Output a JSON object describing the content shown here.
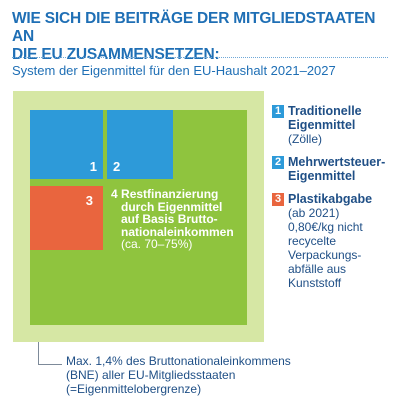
{
  "title": {
    "line1": "WIE SICH DIE BEITRÄGE DER MITGLIEDSTAATEN AN",
    "line2": "DIE EU ZUSAMMENSETZEN:"
  },
  "subtitle": "System der Eigenmittel für den EU-Haushalt  2021–2027",
  "diagram": {
    "box1_number": "1",
    "box2_number": "2",
    "box3_number": "3",
    "rest": {
      "number": "4",
      "line1": "Restfinanzierung",
      "line2": "durch Eigenmittel",
      "line3": "auf Basis Brutto-",
      "line4": "nationaleinkommen",
      "share": "(ca. 70–75%)"
    },
    "colors": {
      "blue": "#2d9ad9",
      "orange": "#e9653e",
      "green": "#8fc43e",
      "light_green": "#d6e7a4",
      "title_blue": "#1f6fb5",
      "text_navy": "#1f4f86"
    }
  },
  "legend": [
    {
      "number": "1",
      "title_lines": [
        "Traditionelle",
        "Eigenmittel"
      ],
      "sub_lines": [
        "(Zölle)"
      ]
    },
    {
      "number": "2",
      "title_lines": [
        "Mehrwertsteuer-",
        "Eigenmittel"
      ],
      "sub_lines": []
    },
    {
      "number": "3",
      "title_lines": [
        "Plastikabgabe"
      ],
      "sub_lines": [
        "(ab 2021)",
        "0,80€/kg nicht",
        "recycelte",
        "Verpackungs-",
        "abfälle aus",
        "Kunststoff"
      ]
    }
  ],
  "footnote": {
    "line1": "Max. 1,4% des Bruttonationaleinkommens",
    "line2": "(BNE) aller EU-Mitgliedsstaaten",
    "line3": "(=Eigenmittelobergrenze)"
  }
}
